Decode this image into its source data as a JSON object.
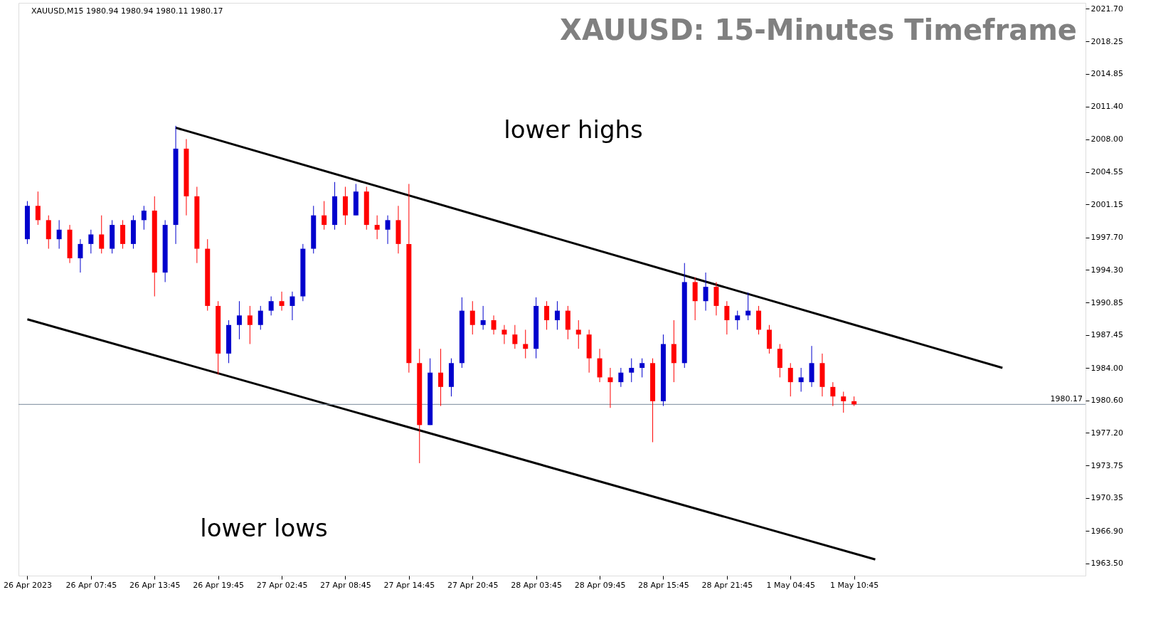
{
  "chart_data": {
    "type": "candlestick",
    "title": "XAUUSD: 15-Minutes Timeframe",
    "annotations": [
      "XAUUSD,M15  1980.94 1980.94 1980.11 1980.17",
      "lower highs",
      "lower lows"
    ],
    "categories": [
      "26 Apr 2023",
      null,
      null,
      null,
      null,
      null,
      "26 Apr 07:45",
      null,
      null,
      null,
      null,
      null,
      "26 Apr 13:45",
      null,
      null,
      null,
      null,
      null,
      "26 Apr 19:45",
      null,
      null,
      null,
      null,
      null,
      "27 Apr 02:45",
      null,
      null,
      null,
      null,
      null,
      "27 Apr 08:45",
      null,
      null,
      null,
      null,
      null,
      "27 Apr 14:45",
      null,
      null,
      null,
      null,
      null,
      "27 Apr 20:45",
      null,
      null,
      null,
      null,
      null,
      "28 Apr 03:45",
      null,
      null,
      null,
      null,
      null,
      "28 Apr 09:45",
      null,
      null,
      null,
      null,
      null,
      "28 Apr 15:45",
      null,
      null,
      null,
      null,
      null,
      "28 Apr 21:45",
      null,
      null,
      null,
      null,
      null,
      "1 May 04:45",
      null,
      null,
      null,
      null,
      null,
      "1 May 10:45",
      null,
      null,
      null,
      null,
      null,
      null,
      null,
      null,
      null,
      null,
      null,
      null,
      null,
      null,
      null,
      null,
      null,
      null,
      null,
      null,
      null
    ],
    "ohlc": [
      [
        1997.5,
        2001.5,
        1997,
        2001
      ],
      [
        2001,
        2002.5,
        1999,
        1999.5
      ],
      [
        1999.5,
        2000,
        1996.5,
        1997.5
      ],
      [
        1997.5,
        1999.5,
        1996.5,
        1998.5
      ],
      [
        1998.5,
        1999,
        1995,
        1995.5
      ],
      [
        1995.5,
        1997.5,
        1994,
        1997
      ],
      [
        1997,
        1998.5,
        1996,
        1998
      ],
      [
        1998,
        2000,
        1996,
        1996.5
      ],
      [
        1996.5,
        1999.5,
        1996,
        1999
      ],
      [
        1999,
        1999.5,
        1996.5,
        1997
      ],
      [
        1997,
        2000,
        1996.5,
        1999.5
      ],
      [
        1999.5,
        2001,
        1998.5,
        2000.5
      ],
      [
        2000.5,
        2002,
        1991.5,
        1994
      ],
      [
        1994,
        1999.5,
        1993,
        1999
      ],
      [
        1999,
        2009.4,
        1997,
        2007
      ],
      [
        2007,
        2008,
        2000,
        2002
      ],
      [
        2002,
        2003,
        1995,
        1996.5
      ],
      [
        1996.5,
        1997.5,
        1990,
        1990.5
      ],
      [
        1990.5,
        1991,
        1983.3,
        1985.5
      ],
      [
        1985.5,
        1989,
        1984.5,
        1988.5
      ],
      [
        1988.5,
        1991,
        1987,
        1989.5
      ],
      [
        1989.5,
        1990.5,
        1986.5,
        1988.5
      ],
      [
        1988.5,
        1990.5,
        1988,
        1990
      ],
      [
        1990,
        1991.5,
        1989.5,
        1991
      ],
      [
        1991,
        1992,
        1990,
        1990.5
      ],
      [
        1990.5,
        1992,
        1989,
        1991.5
      ],
      [
        1991.5,
        1997,
        1991,
        1996.5
      ],
      [
        1996.5,
        2001,
        1996,
        2000
      ],
      [
        2000,
        2001.5,
        1998.5,
        1999
      ],
      [
        1999,
        2003.5,
        1998.5,
        2002
      ],
      [
        2002,
        2003,
        1999,
        2000
      ],
      [
        2000,
        2003.3,
        2000,
        2002.5
      ],
      [
        2002.5,
        2003,
        1998.5,
        1999
      ],
      [
        1999,
        2000,
        1997.5,
        1998.5
      ],
      [
        1998.5,
        2000,
        1997,
        1999.5
      ],
      [
        1999.5,
        2001,
        1996,
        1997
      ],
      [
        1997,
        2003.3,
        1983.5,
        1984.5
      ],
      [
        1984.5,
        1986,
        1974,
        1978
      ],
      [
        1978,
        1985,
        1978,
        1983.5
      ],
      [
        1983.5,
        1986,
        1980,
        1982
      ],
      [
        1982,
        1985,
        1981,
        1984.5
      ],
      [
        1984.5,
        1991.4,
        1984,
        1990
      ],
      [
        1990,
        1991,
        1987.5,
        1988.5
      ],
      [
        1988.5,
        1990.5,
        1988,
        1989
      ],
      [
        1989,
        1989.5,
        1987.5,
        1988
      ],
      [
        1988,
        1988.5,
        1986.5,
        1987.5
      ],
      [
        1987.5,
        1988.5,
        1986,
        1986.5
      ],
      [
        1986.5,
        1988,
        1985,
        1986
      ],
      [
        1986,
        1991.4,
        1985,
        1990.5
      ],
      [
        1990.5,
        1991,
        1988,
        1989
      ],
      [
        1989,
        1991,
        1988,
        1990
      ],
      [
        1990,
        1990.5,
        1987,
        1988
      ],
      [
        1988,
        1989,
        1986,
        1987.5
      ],
      [
        1987.5,
        1988,
        1983.5,
        1985
      ],
      [
        1985,
        1986,
        1982.5,
        1983
      ],
      [
        1983,
        1984,
        1979.8,
        1982.5
      ],
      [
        1982.5,
        1984,
        1982,
        1983.5
      ],
      [
        1983.5,
        1985,
        1982.5,
        1984
      ],
      [
        1984,
        1985,
        1983,
        1984.5
      ],
      [
        1984.5,
        1985,
        1976.2,
        1980.5
      ],
      [
        1980.5,
        1987.5,
        1980,
        1986.5
      ],
      [
        1986.5,
        1989,
        1982.5,
        1984.5
      ],
      [
        1984.5,
        1995,
        1984,
        1993
      ],
      [
        1993,
        1993.5,
        1989,
        1991
      ],
      [
        1991,
        1994,
        1990,
        1992.5
      ],
      [
        1992.5,
        1993,
        1989.5,
        1990.5
      ],
      [
        1990.5,
        1991,
        1987.5,
        1989
      ],
      [
        1989,
        1990,
        1988,
        1989.5
      ],
      [
        1989.5,
        1991.9,
        1989,
        1990
      ],
      [
        1990,
        1990.5,
        1987.5,
        1988
      ],
      [
        1988,
        1988.5,
        1985.5,
        1986
      ],
      [
        1986,
        1986.5,
        1983,
        1984
      ],
      [
        1984,
        1984.5,
        1981,
        1982.5
      ],
      [
        1982.5,
        1984,
        1981.5,
        1983
      ],
      [
        1982.5,
        1986.3,
        1982,
        1984.5
      ],
      [
        1984.5,
        1985.5,
        1981,
        1982
      ],
      [
        1982,
        1982.5,
        1980,
        1981
      ],
      [
        1981,
        1981.5,
        1979.3,
        1980.5
      ],
      [
        1980.5,
        1981,
        1980,
        1980.17
      ],
      null,
      null,
      null,
      null,
      null,
      null,
      null,
      null,
      null,
      null,
      null,
      null,
      null,
      null,
      null,
      null,
      null,
      null,
      null,
      null,
      null
    ],
    "colors": [
      "#0000cd",
      "#ff0000",
      "#ff0000",
      "#0000cd",
      "#ff0000",
      "#0000cd",
      "#0000cd",
      "#ff0000",
      "#0000cd",
      "#ff0000",
      "#0000cd",
      "#0000cd",
      "#ff0000",
      "#0000cd",
      "#0000cd",
      "#ff0000",
      "#ff0000",
      "#ff0000",
      "#ff0000",
      "#0000cd",
      "#0000cd",
      "#ff0000",
      "#0000cd",
      "#0000cd",
      "#ff0000",
      "#0000cd",
      "#0000cd",
      "#0000cd",
      "#ff0000",
      "#0000cd",
      "#ff0000",
      "#0000cd",
      "#ff0000",
      "#ff0000",
      "#0000cd",
      "#ff0000",
      "#ff0000",
      "#ff0000",
      "#0000cd",
      "#ff0000",
      "#0000cd",
      "#0000cd",
      "#ff0000",
      "#0000cd",
      "#ff0000",
      "#ff0000",
      "#ff0000",
      "#ff0000",
      "#0000cd",
      "#ff0000",
      "#0000cd",
      "#ff0000",
      "#ff0000",
      "#ff0000",
      "#ff0000",
      "#ff0000",
      "#0000cd",
      "#0000cd",
      "#0000cd",
      "#ff0000",
      "#0000cd",
      "#ff0000",
      "#0000cd",
      "#ff0000",
      "#0000cd",
      "#ff0000",
      "#ff0000",
      "#0000cd",
      "#0000cd",
      "#ff0000",
      "#ff0000",
      "#ff0000",
      "#ff0000",
      "#0000cd",
      "#0000cd",
      "#ff0000",
      "#ff0000",
      "#ff0000",
      "#ff0000",
      null,
      null,
      null,
      null,
      null,
      null,
      null,
      null,
      null,
      null,
      null,
      null,
      null,
      null,
      null,
      null,
      null,
      null,
      null,
      null,
      null
    ],
    "series": [
      {
        "type": "line",
        "color": "#000000",
        "values": [
          null,
          null,
          null,
          null,
          null,
          null,
          null,
          null,
          null,
          null,
          null,
          null,
          null,
          null,
          2009.2,
          null,
          null,
          null,
          null,
          null,
          null,
          null,
          null,
          null,
          null,
          null,
          null,
          null,
          null,
          null,
          null,
          null,
          null,
          null,
          null,
          null,
          null,
          null,
          null,
          null,
          null,
          null,
          null,
          null,
          null,
          null,
          null,
          null,
          null,
          null,
          null,
          null,
          null,
          null,
          null,
          null,
          null,
          null,
          null,
          null,
          null,
          null,
          null,
          null,
          null,
          null,
          null,
          null,
          null,
          null,
          null,
          null,
          null,
          null,
          null,
          null,
          null,
          null,
          null,
          null,
          null,
          null,
          null,
          null,
          null,
          null,
          null,
          null,
          null,
          null,
          null,
          null,
          1984.0,
          null,
          null,
          null,
          null,
          null,
          null,
          null
        ]
      },
      {
        "type": "line",
        "color": "#000000",
        "values": [
          1989.1,
          null,
          null,
          null,
          null,
          null,
          null,
          null,
          null,
          null,
          null,
          null,
          null,
          null,
          null,
          null,
          null,
          null,
          null,
          null,
          null,
          null,
          null,
          null,
          null,
          null,
          null,
          null,
          null,
          null,
          null,
          null,
          null,
          null,
          null,
          null,
          null,
          null,
          null,
          null,
          null,
          null,
          null,
          null,
          null,
          null,
          null,
          null,
          null,
          null,
          null,
          null,
          null,
          null,
          null,
          null,
          null,
          null,
          null,
          null,
          null,
          null,
          null,
          null,
          null,
          null,
          null,
          null,
          null,
          null,
          null,
          null,
          null,
          null,
          null,
          null,
          null,
          null,
          null,
          null,
          1963.9,
          null,
          null,
          null,
          null,
          null,
          null,
          null,
          null,
          null,
          null,
          null,
          null,
          null,
          null,
          null,
          null,
          null,
          null,
          null
        ]
      }
    ],
    "ref_lines": [
      {
        "axis": "y",
        "value": 1980.17,
        "label": "1980.17",
        "color": "#778899"
      }
    ],
    "ylim": [
      1962.2,
      2022.3
    ],
    "yticks": [
      {
        "value": 1963.5,
        "label": "1963.50"
      },
      {
        "value": 1966.9,
        "label": "1966.90"
      },
      {
        "value": 1970.35,
        "label": "1970.35"
      },
      {
        "value": 1973.75,
        "label": "1973.75"
      },
      {
        "value": 1977.2,
        "label": "1977.20"
      },
      {
        "value": 1980.6,
        "label": "1980.60"
      },
      {
        "value": 1984,
        "label": "1984.00"
      },
      {
        "value": 1987.45,
        "label": "1987.45"
      },
      {
        "value": 1990.85,
        "label": "1990.85"
      },
      {
        "value": 1994.3,
        "label": "1994.30"
      },
      {
        "value": 1997.7,
        "label": "1997.70"
      },
      {
        "value": 2001.15,
        "label": "2001.15"
      },
      {
        "value": 2004.55,
        "label": "2004.55"
      },
      {
        "value": 2008,
        "label": "2008.00"
      },
      {
        "value": 2011.4,
        "label": "2011.40"
      },
      {
        "value": 2014.85,
        "label": "2014.85"
      },
      {
        "value": 2018.25,
        "label": "2018.25"
      },
      {
        "value": 2021.7,
        "label": "2021.70"
      }
    ],
    "grid": false
  }
}
